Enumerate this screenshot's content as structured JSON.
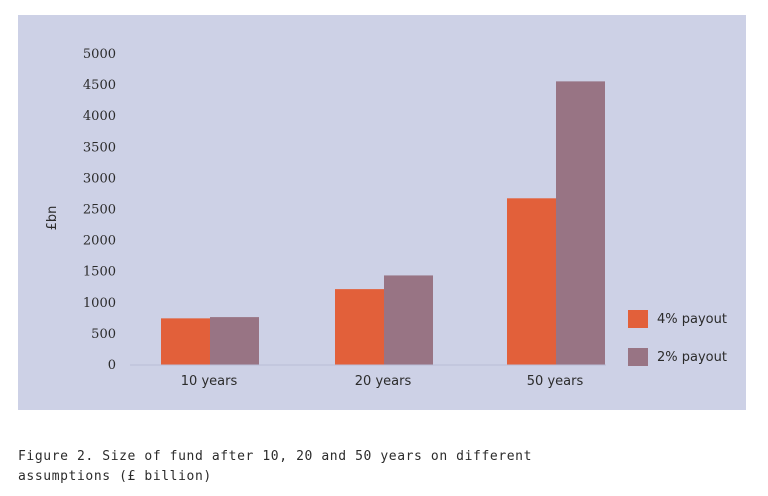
{
  "chart_data": {
    "type": "bar",
    "categories": [
      "10 years",
      "20 years",
      "50 years"
    ],
    "series": [
      {
        "name": "4% payout",
        "color": "#e2603a",
        "values": [
          750,
          1220,
          2680
        ]
      },
      {
        "name": "2% payout",
        "color": "#987484",
        "values": [
          770,
          1440,
          4560
        ]
      }
    ],
    "ylabel": "£bn",
    "yticks": [
      0,
      500,
      1000,
      1500,
      2000,
      2500,
      3000,
      3500,
      4000,
      4500,
      5000
    ],
    "ylim": [
      0,
      5000
    ],
    "grid": false,
    "legend": "right",
    "background": "#cdd1e6"
  },
  "caption": "Figure 2. Size of fund after 10, 20 and 50 years on different\nassumptions (£ billion)"
}
